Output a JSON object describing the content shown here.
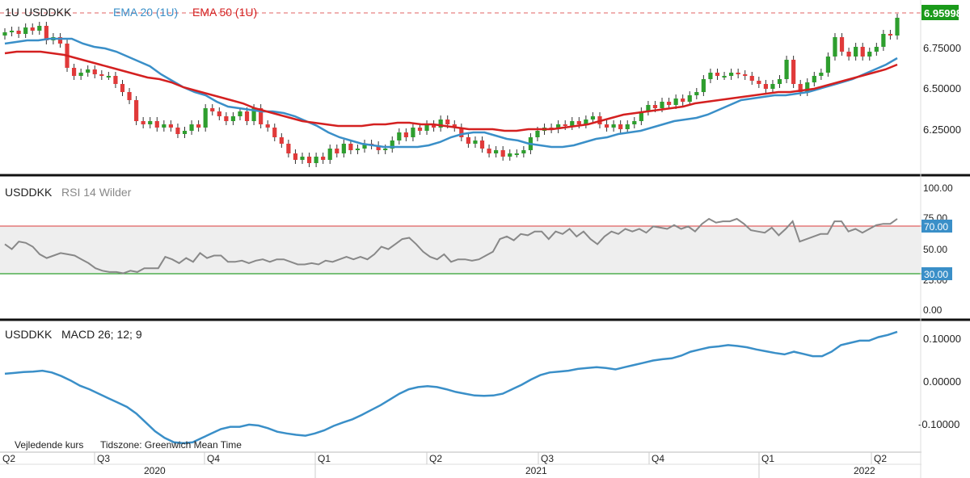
{
  "header": {
    "interval": "1U",
    "symbol": "USDDKK",
    "ema20": "EMA 20 (1U)",
    "ema50": "EMA 50 (1U)"
  },
  "price_panel": {
    "yaxis": [
      "6.75000",
      "6.50000",
      "6.25000"
    ],
    "last_price_tag": "6.95998"
  },
  "rsi_panel": {
    "title_symbol": "USDDKK",
    "title_ind": "RSI 14 Wilder",
    "yaxis": [
      "100.00",
      "75.00",
      "50.00",
      "25.00",
      "0.00"
    ],
    "upper_tag": "70.00",
    "lower_tag": "30.00"
  },
  "macd_panel": {
    "title_symbol": "USDDKK",
    "title_ind": "MACD 26; 12; 9",
    "yaxis": [
      "0.10000",
      "0.00000",
      "-0.10000"
    ]
  },
  "footer": {
    "note_left": "Vejledende kurs",
    "note_tz": "Tidszone: Greenwich Mean Time",
    "quarters": [
      "Q2",
      "Q3",
      "Q4",
      "Q1",
      "Q2",
      "Q3",
      "Q4",
      "Q1",
      "Q2"
    ],
    "years": [
      "2020",
      "2021",
      "2022"
    ]
  },
  "colors": {
    "up": "#2e9e2e",
    "down": "#e03a3a",
    "ema20": "#3a8fc8",
    "ema50": "#d42020",
    "rsi": "#888888",
    "macd": "#3a8fc8",
    "rsi_upper": "#e06060",
    "rsi_lower": "#2ea02e",
    "tag_green": "#1a9a1a",
    "tag_blue": "#3a8fc8"
  },
  "chart_data": [
    {
      "type": "candlestick",
      "title": "USDDKK",
      "ylim": [
        6.02,
        7.02
      ],
      "closes": [
        6.87,
        6.88,
        6.86,
        6.9,
        6.88,
        6.91,
        6.82,
        6.84,
        6.8,
        6.65,
        6.6,
        6.62,
        6.64,
        6.61,
        6.6,
        6.6,
        6.55,
        6.5,
        6.45,
        6.32,
        6.3,
        6.32,
        6.28,
        6.3,
        6.28,
        6.24,
        6.26,
        6.3,
        6.28,
        6.4,
        6.38,
        6.35,
        6.32,
        6.35,
        6.38,
        6.32,
        6.4,
        6.3,
        6.28,
        6.22,
        6.18,
        6.12,
        6.08,
        6.1,
        6.06,
        6.1,
        6.08,
        6.15,
        6.12,
        6.18,
        6.14,
        6.15,
        6.18,
        6.17,
        6.14,
        6.15,
        6.2,
        6.25,
        6.22,
        6.28,
        6.26,
        6.3,
        6.28,
        6.33,
        6.3,
        6.28,
        6.22,
        6.18,
        6.2,
        6.15,
        6.12,
        6.14,
        6.1,
        6.12,
        6.12,
        6.14,
        6.22,
        6.26,
        6.28,
        6.27,
        6.3,
        6.29,
        6.32,
        6.3,
        6.33,
        6.35,
        6.3,
        6.28,
        6.3,
        6.27,
        6.3,
        6.32,
        6.38,
        6.42,
        6.4,
        6.44,
        6.42,
        6.46,
        6.44,
        6.48,
        6.5,
        6.58,
        6.62,
        6.6,
        6.6,
        6.62,
        6.61,
        6.6,
        6.57,
        6.55,
        6.52,
        6.55,
        6.58,
        6.7,
        6.55,
        6.5,
        6.56,
        6.6,
        6.62,
        6.72,
        6.84,
        6.75,
        6.72,
        6.78,
        6.72,
        6.75,
        6.78,
        6.86,
        6.85,
        6.96
      ],
      "ema20": [
        6.8,
        6.81,
        6.82,
        6.82,
        6.83,
        6.83,
        6.83,
        6.8,
        6.78,
        6.77,
        6.75,
        6.72,
        6.69,
        6.66,
        6.61,
        6.57,
        6.53,
        6.5,
        6.48,
        6.44,
        6.41,
        6.4,
        6.39,
        6.38,
        6.38,
        6.37,
        6.35,
        6.32,
        6.29,
        6.25,
        6.22,
        6.2,
        6.18,
        6.17,
        6.16,
        6.16,
        6.16,
        6.16,
        6.17,
        6.19,
        6.22,
        6.24,
        6.25,
        6.25,
        6.23,
        6.21,
        6.2,
        6.18,
        6.17,
        6.16,
        6.16,
        6.17,
        6.19,
        6.21,
        6.22,
        6.24,
        6.25,
        6.26,
        6.28,
        6.3,
        6.32,
        6.33,
        6.34,
        6.36,
        6.39,
        6.42,
        6.45,
        6.46,
        6.47,
        6.48,
        6.48,
        6.49,
        6.5,
        6.52,
        6.54,
        6.56,
        6.58,
        6.61,
        6.64,
        6.67,
        6.71
      ],
      "ema50": [
        6.74,
        6.75,
        6.75,
        6.75,
        6.74,
        6.73,
        6.71,
        6.69,
        6.67,
        6.65,
        6.63,
        6.61,
        6.59,
        6.58,
        6.56,
        6.53,
        6.51,
        6.49,
        6.47,
        6.45,
        6.43,
        6.4,
        6.38,
        6.36,
        6.34,
        6.32,
        6.31,
        6.3,
        6.29,
        6.29,
        6.29,
        6.3,
        6.3,
        6.31,
        6.31,
        6.3,
        6.3,
        6.29,
        6.28,
        6.27,
        6.27,
        6.27,
        6.26,
        6.26,
        6.27,
        6.27,
        6.27,
        6.28,
        6.29,
        6.3,
        6.32,
        6.34,
        6.36,
        6.37,
        6.38,
        6.39,
        6.4,
        6.41,
        6.43,
        6.44,
        6.45,
        6.46,
        6.47,
        6.48,
        6.49,
        6.5,
        6.5,
        6.51,
        6.52,
        6.54,
        6.56,
        6.58,
        6.6,
        6.62,
        6.64,
        6.67
      ]
    },
    {
      "type": "line",
      "title": "RSI 14 Wilder",
      "ylim": [
        0,
        100
      ],
      "levels": [
        30,
        70
      ],
      "values": [
        52,
        48,
        54,
        53,
        50,
        44,
        41,
        43,
        45,
        44,
        43,
        40,
        37,
        33,
        31,
        30,
        30,
        29,
        31,
        30,
        33,
        33,
        33,
        42,
        40,
        37,
        41,
        38,
        45,
        41,
        43,
        43,
        38,
        38,
        39,
        37,
        39,
        40,
        38,
        40,
        40,
        38,
        36,
        36,
        37,
        36,
        39,
        38,
        40,
        42,
        40,
        42,
        40,
        44,
        50,
        48,
        52,
        56,
        57,
        52,
        46,
        42,
        40,
        44,
        38,
        40,
        40,
        39,
        40,
        43,
        46,
        56,
        58,
        55,
        60,
        59,
        62,
        62,
        56,
        62,
        60,
        64,
        58,
        62,
        56,
        52,
        58,
        62,
        60,
        64,
        62,
        64,
        61,
        66,
        65,
        64,
        67,
        64,
        66,
        62,
        68,
        72,
        69,
        70,
        70,
        72,
        68,
        63,
        62,
        61,
        65,
        59,
        64,
        70,
        54,
        56,
        58,
        60,
        60,
        70,
        70,
        62,
        64,
        61,
        64,
        67,
        68,
        68,
        72
      ]
    },
    {
      "type": "line",
      "title": "MACD 26; 12; 9",
      "ylim": [
        -0.145,
        0.14
      ],
      "values": [
        0.025,
        0.027,
        0.029,
        0.03,
        0.032,
        0.028,
        0.02,
        0.01,
        -0.002,
        -0.01,
        -0.02,
        -0.03,
        -0.04,
        -0.05,
        -0.065,
        -0.085,
        -0.105,
        -0.12,
        -0.13,
        -0.132,
        -0.13,
        -0.12,
        -0.11,
        -0.1,
        -0.095,
        -0.095,
        -0.09,
        -0.092,
        -0.098,
        -0.106,
        -0.11,
        -0.113,
        -0.115,
        -0.11,
        -0.103,
        -0.093,
        -0.085,
        -0.078,
        -0.068,
        -0.057,
        -0.046,
        -0.033,
        -0.02,
        -0.01,
        -0.005,
        -0.003,
        -0.005,
        -0.01,
        -0.016,
        -0.02,
        -0.024,
        -0.025,
        -0.024,
        -0.02,
        -0.01,
        0.0,
        0.012,
        0.022,
        0.028,
        0.03,
        0.032,
        0.036,
        0.038,
        0.04,
        0.038,
        0.035,
        0.04,
        0.045,
        0.05,
        0.055,
        0.058,
        0.06,
        0.066,
        0.075,
        0.08,
        0.085,
        0.087,
        0.09,
        0.088,
        0.085,
        0.08,
        0.076,
        0.072,
        0.069,
        0.075,
        0.07,
        0.065,
        0.065,
        0.075,
        0.09,
        0.095,
        0.1,
        0.1,
        0.108,
        0.113,
        0.12
      ]
    }
  ]
}
